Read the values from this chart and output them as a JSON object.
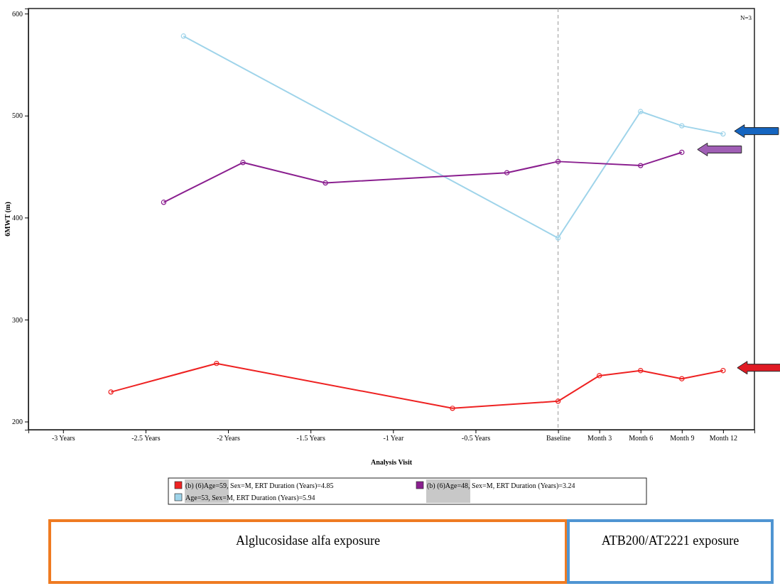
{
  "chart_data": {
    "type": "line",
    "xlabel": "Analysis Visit",
    "ylabel": "6MWT (m)",
    "xlim": [
      -3.21,
      1.19
    ],
    "ylim": [
      192,
      605
    ],
    "xticks": [
      {
        "value": -3,
        "label": "-3 Years"
      },
      {
        "value": -2.5,
        "label": "-2.5 Years"
      },
      {
        "value": -2,
        "label": "-2 Years"
      },
      {
        "value": -1.5,
        "label": "-1.5 Years"
      },
      {
        "value": -1,
        "label": "-1 Year"
      },
      {
        "value": -0.5,
        "label": "-0.5 Years"
      },
      {
        "value": 0,
        "label": "Baseline"
      },
      {
        "value": 0.25,
        "label": "Month 3"
      },
      {
        "value": 0.5,
        "label": "Month 6"
      },
      {
        "value": 0.75,
        "label": "Month 9"
      },
      {
        "value": 1,
        "label": "Month 12"
      }
    ],
    "yticks": [
      200,
      300,
      400,
      500,
      600
    ],
    "grid": false,
    "legend": "bottom",
    "marker": "circle",
    "line_style": "solid",
    "series": [
      {
        "name": "(b) (6)Age=59, Sex=M, ERT Duration (Years)=4.85",
        "color": "#ee2222",
        "x": [
          -2.71,
          -2.07,
          -0.64,
          0,
          0.25,
          0.5,
          0.75,
          1
        ],
        "values": [
          229,
          257,
          213,
          220,
          245,
          250,
          242,
          250
        ]
      },
      {
        "name": "Age=53, Sex=M, ERT Duration (Years)=5.94",
        "color": "#9fd4ea",
        "x": [
          -2.27,
          0,
          0.5,
          0.75,
          1
        ],
        "values": [
          578,
          380,
          504,
          490,
          482
        ]
      },
      {
        "name": "(b) (6)Age=48, Sex=M, ERT Duration (Years)=3.24",
        "color": "#8a1f8f",
        "x": [
          -2.39,
          -1.91,
          -1.41,
          -0.31,
          0,
          0.5,
          0.75
        ],
        "values": [
          415,
          454,
          434,
          444,
          455,
          451,
          464
        ]
      }
    ],
    "ref_lines": [
      {
        "axis": "x",
        "value": 0,
        "color": "#999999",
        "line_style": "dashed"
      }
    ],
    "annotations": [
      "N=3",
      "Alglucosidase alfa exposure",
      "ATB200/AT2221 exposure"
    ]
  }
}
